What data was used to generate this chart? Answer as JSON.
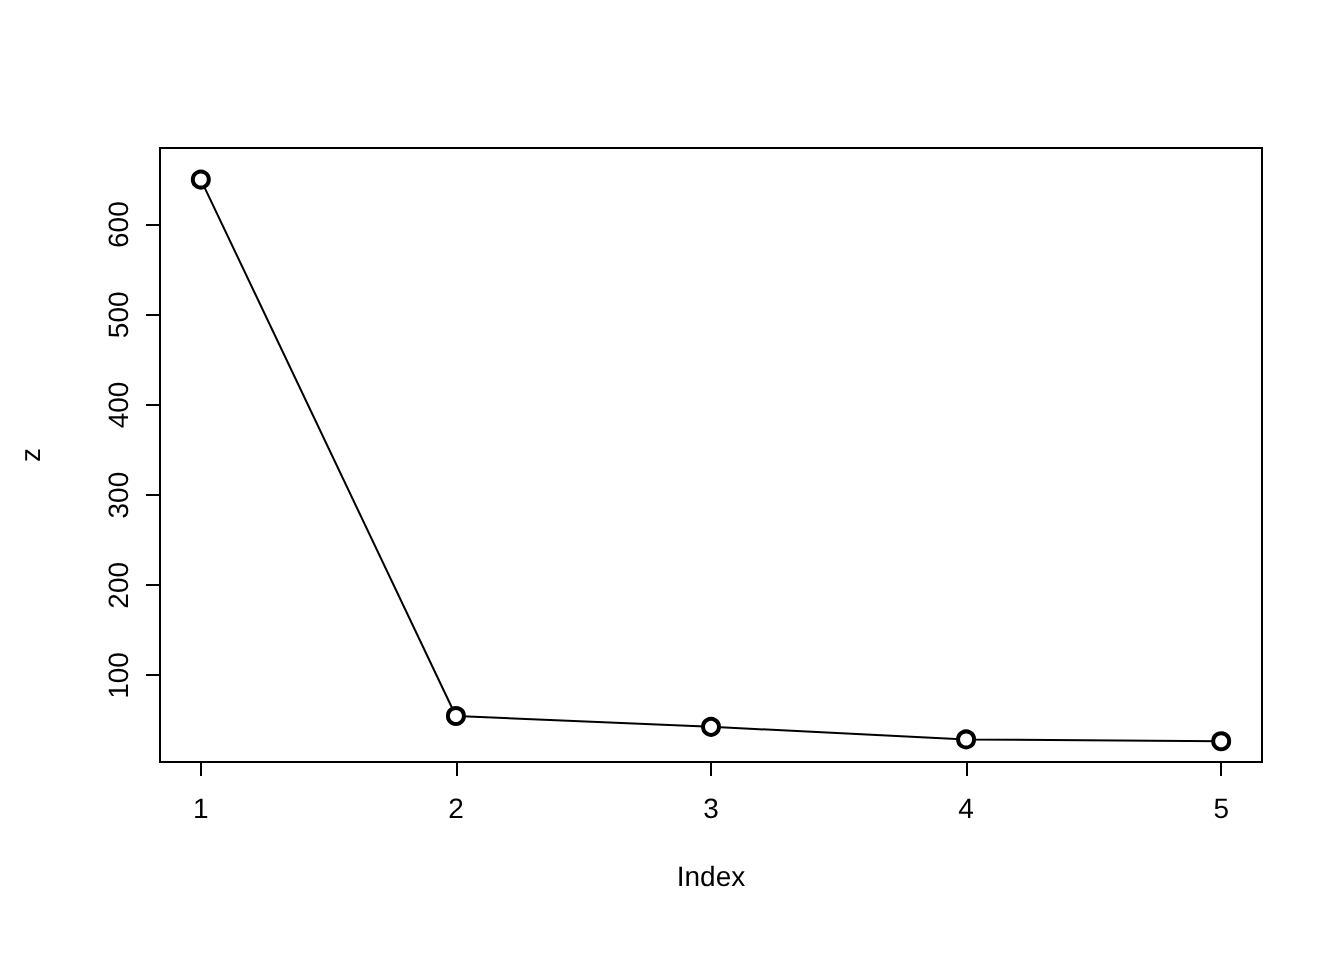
{
  "chart_data": {
    "type": "line",
    "xlabel": "Index",
    "ylabel": "z",
    "x": [
      1,
      2,
      3,
      4,
      5
    ],
    "series": [
      {
        "color": "#000000",
        "values": [
          650,
          55,
          43,
          29,
          27
        ]
      }
    ],
    "xlim": [
      0.84,
      5.16
    ],
    "xticks": [
      1,
      2,
      3,
      4,
      5
    ],
    "ylim": [
      4,
      685
    ],
    "yticks": [
      100,
      200,
      300,
      400,
      500,
      600
    ],
    "grid": false,
    "marker": "circle",
    "line_style": "solid"
  }
}
